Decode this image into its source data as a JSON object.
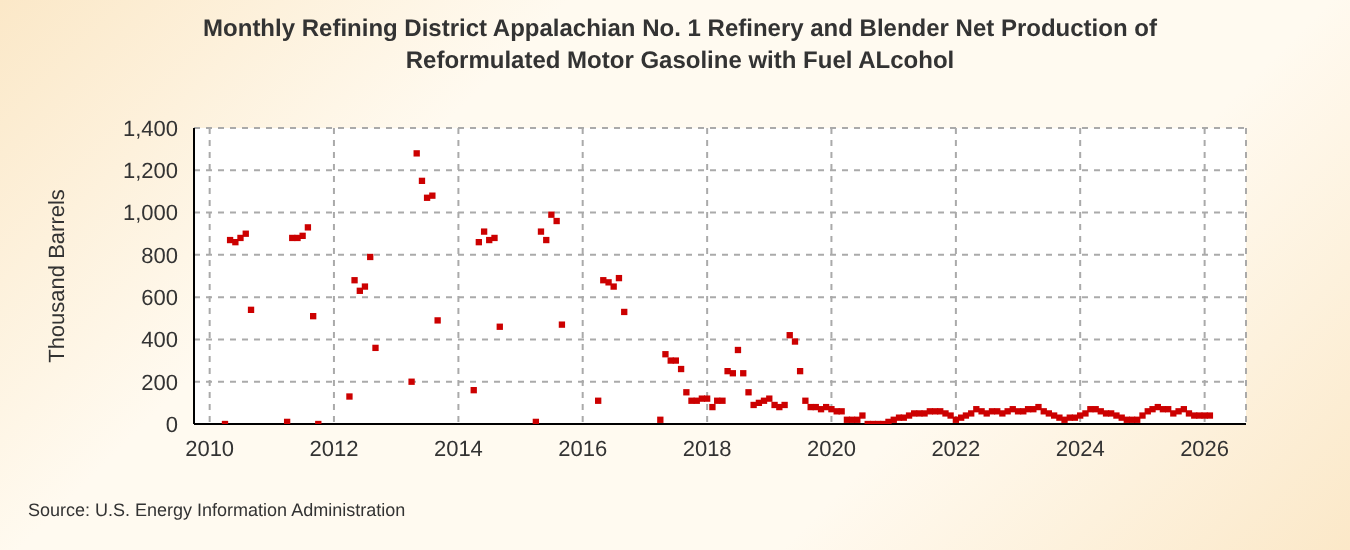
{
  "chart_data": {
    "type": "scatter",
    "title": "Monthly Refining District Appalachian No. 1 Refinery and Blender Net Production of Reformulated Motor Gasoline with Fuel ALcohol",
    "ylabel": "Thousand Barrels",
    "annotations": [
      "Source: U.S. Energy Information Administration"
    ],
    "x": [
      "2010-04",
      "2010-05",
      "2010-06",
      "2010-07",
      "2010-08",
      "2010-09",
      "2011-04",
      "2011-05",
      "2011-06",
      "2011-07",
      "2011-08",
      "2011-09",
      "2011-10",
      "2012-04",
      "2012-05",
      "2012-06",
      "2012-07",
      "2012-08",
      "2012-09",
      "2013-04",
      "2013-05",
      "2013-06",
      "2013-07",
      "2013-08",
      "2013-09",
      "2014-04",
      "2014-05",
      "2014-06",
      "2014-07",
      "2014-08",
      "2014-09",
      "2015-04",
      "2015-05",
      "2015-06",
      "2015-07",
      "2015-08",
      "2015-09",
      "2016-04",
      "2016-05",
      "2016-06",
      "2016-07",
      "2016-08",
      "2016-09",
      "2017-04",
      "2017-05",
      "2017-06",
      "2017-07",
      "2017-08",
      "2017-09",
      "2017-10",
      "2017-11",
      "2017-12",
      "2018-01",
      "2018-02",
      "2018-03",
      "2018-04",
      "2018-05",
      "2018-06",
      "2018-07",
      "2018-08",
      "2018-09",
      "2018-10",
      "2018-11",
      "2018-12",
      "2019-01",
      "2019-02",
      "2019-03",
      "2019-04",
      "2019-05",
      "2019-06",
      "2019-07",
      "2019-08",
      "2019-09",
      "2019-10",
      "2019-11",
      "2019-12",
      "2020-01",
      "2020-02",
      "2020-03",
      "2020-04",
      "2020-05",
      "2020-06",
      "2020-07",
      "2020-08",
      "2020-09",
      "2020-10",
      "2020-11",
      "2020-12",
      "2021-01",
      "2021-02",
      "2021-03",
      "2021-04",
      "2021-05",
      "2021-06",
      "2021-07",
      "2021-08",
      "2021-09",
      "2021-10",
      "2021-11",
      "2021-12",
      "2022-01",
      "2022-02",
      "2022-03",
      "2022-04",
      "2022-05",
      "2022-06",
      "2022-07",
      "2022-08",
      "2022-09",
      "2022-10",
      "2022-11",
      "2022-12",
      "2023-01",
      "2023-02",
      "2023-03",
      "2023-04",
      "2023-05",
      "2023-06",
      "2023-07",
      "2023-08",
      "2023-09",
      "2023-10",
      "2023-11",
      "2023-12",
      "2024-01",
      "2024-02",
      "2024-03",
      "2024-04",
      "2024-05",
      "2024-06",
      "2024-07",
      "2024-08",
      "2024-09",
      "2024-10",
      "2024-11",
      "2024-12",
      "2025-01",
      "2025-02",
      "2025-03",
      "2025-04",
      "2025-05",
      "2025-06",
      "2025-07",
      "2025-08",
      "2025-09",
      "2025-10",
      "2025-11",
      "2025-12",
      "2026-01",
      "2026-02"
    ],
    "values": [
      0,
      870,
      860,
      880,
      900,
      540,
      10,
      880,
      880,
      890,
      930,
      510,
      0,
      130,
      680,
      630,
      650,
      790,
      360,
      200,
      1280,
      1150,
      1070,
      1080,
      490,
      160,
      860,
      910,
      870,
      880,
      460,
      10,
      910,
      870,
      990,
      960,
      470,
      110,
      680,
      670,
      650,
      690,
      530,
      20,
      330,
      300,
      300,
      260,
      150,
      110,
      110,
      120,
      120,
      80,
      110,
      110,
      250,
      240,
      350,
      240,
      150,
      90,
      100,
      110,
      120,
      90,
      80,
      90,
      420,
      390,
      250,
      110,
      80,
      80,
      70,
      80,
      70,
      60,
      60,
      20,
      20,
      20,
      40,
      0,
      0,
      0,
      0,
      10,
      20,
      30,
      30,
      40,
      50,
      50,
      50,
      60,
      60,
      60,
      50,
      40,
      20,
      30,
      40,
      50,
      70,
      60,
      50,
      60,
      60,
      50,
      60,
      70,
      60,
      60,
      70,
      70,
      80,
      60,
      50,
      40,
      30,
      20,
      30,
      30,
      40,
      50,
      70,
      70,
      60,
      50,
      50,
      40,
      30,
      20,
      20,
      20,
      40,
      60,
      70,
      80,
      70,
      70,
      50,
      60,
      70,
      50,
      40,
      40,
      40,
      40
    ],
    "color": "#cc0000",
    "marker": "square",
    "grid": true,
    "xlim": [
      "2009-10",
      "2026-09"
    ],
    "xticks": [
      {
        "value": "2010",
        "label": "2010"
      },
      {
        "value": "2012",
        "label": "2012"
      },
      {
        "value": "2014",
        "label": "2014"
      },
      {
        "value": "2016",
        "label": "2016"
      },
      {
        "value": "2018",
        "label": "2018"
      },
      {
        "value": "2020",
        "label": "2020"
      },
      {
        "value": "2022",
        "label": "2022"
      },
      {
        "value": "2024",
        "label": "2024"
      },
      {
        "value": "2026",
        "label": "2026"
      }
    ],
    "ylim": [
      0,
      1400
    ],
    "yticks": [
      0,
      200,
      400,
      600,
      800,
      {
        "value": 1000,
        "label": "1,000"
      },
      {
        "value": 1200,
        "label": "1,200"
      },
      {
        "value": 1400,
        "label": "1,400"
      }
    ]
  }
}
